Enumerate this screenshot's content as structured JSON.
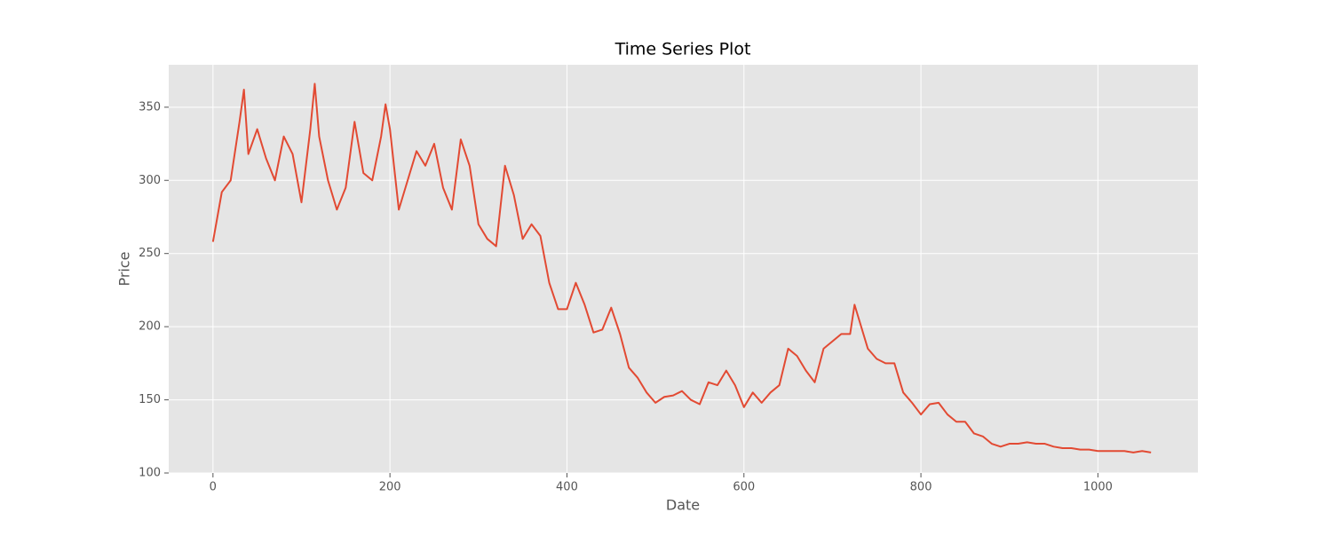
{
  "chart_data": {
    "type": "line",
    "title": "Time Series Plot",
    "x_label": "Date",
    "y_label": "Price",
    "x": [
      0,
      10,
      20,
      30,
      35,
      40,
      50,
      60,
      70,
      80,
      90,
      100,
      110,
      115,
      120,
      130,
      140,
      150,
      160,
      170,
      180,
      190,
      195,
      200,
      210,
      220,
      230,
      240,
      250,
      260,
      270,
      280,
      290,
      300,
      310,
      320,
      330,
      340,
      350,
      360,
      370,
      380,
      390,
      400,
      410,
      420,
      430,
      440,
      450,
      460,
      470,
      480,
      490,
      500,
      510,
      520,
      530,
      540,
      550,
      560,
      570,
      580,
      590,
      600,
      610,
      620,
      630,
      640,
      650,
      660,
      670,
      680,
      690,
      700,
      710,
      720,
      725,
      730,
      740,
      750,
      760,
      770,
      780,
      790,
      800,
      810,
      820,
      830,
      840,
      850,
      860,
      870,
      880,
      890,
      900,
      910,
      920,
      930,
      940,
      950,
      960,
      970,
      980,
      990,
      1000,
      1010,
      1020,
      1030,
      1040,
      1050,
      1060
    ],
    "series": [
      {
        "name": "Price",
        "color": "#e24a33",
        "values": [
          258,
          292,
          300,
          340,
          362,
          318,
          335,
          315,
          300,
          330,
          318,
          285,
          335,
          366,
          330,
          300,
          280,
          295,
          340,
          305,
          300,
          330,
          352,
          335,
          280,
          300,
          320,
          310,
          325,
          295,
          280,
          328,
          310,
          270,
          260,
          255,
          310,
          290,
          260,
          270,
          262,
          230,
          212,
          212,
          230,
          215,
          196,
          198,
          213,
          195,
          172,
          165,
          155,
          148,
          152,
          153,
          156,
          150,
          147,
          162,
          160,
          170,
          160,
          145,
          155,
          148,
          155,
          160,
          185,
          180,
          170,
          162,
          185,
          190,
          195,
          195,
          215,
          205,
          185,
          178,
          175,
          175,
          155,
          148,
          140,
          147,
          148,
          140,
          135,
          135,
          127,
          125,
          120,
          118,
          120,
          120,
          121,
          120,
          120,
          118,
          117,
          117,
          116,
          116,
          115,
          115,
          115,
          115,
          114,
          115,
          114
        ]
      }
    ],
    "xlim": [
      -50,
      1113
    ],
    "ylim": [
      100,
      379
    ],
    "xticks": [
      0,
      200,
      400,
      600,
      800,
      1000
    ],
    "yticks": [
      100,
      150,
      200,
      250,
      300,
      350
    ],
    "grid": true
  }
}
